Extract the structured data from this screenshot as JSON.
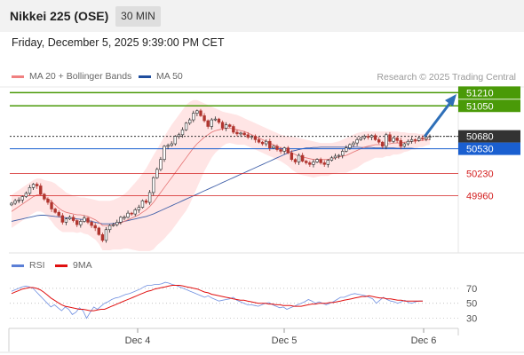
{
  "header": {
    "title": "Nikkei 225 (OSE)",
    "timeframe": "30 MIN"
  },
  "datetime": "Friday, December 5, 2025 9:39:00 PM CET",
  "legend": {
    "ma20": {
      "label": "MA 20 + Bollinger Bands",
      "color": "#f08080"
    },
    "ma50": {
      "label": "MA 50",
      "color": "#1f4e9e"
    }
  },
  "credit": "Research © 2025 Trading Central",
  "rsi_legend": {
    "rsi": {
      "label": "RSI",
      "color": "#5b7fd6"
    },
    "ma9": {
      "label": "9MA",
      "color": "#e01010"
    }
  },
  "colors": {
    "up": "#2a2a2a",
    "down": "#b0352f",
    "target_green": "#4a9a08",
    "resistance_dark": "#333333",
    "pivot_blue": "#1a5fd0",
    "support_red": "#d32020",
    "bollinger_fill": "#ffdcdc",
    "arrow": "#2e6fb8"
  },
  "chart_data": [
    {
      "type": "candlestick",
      "ylim": [
        49300,
        51300
      ],
      "x_tick_labels": [
        "Dec 4",
        "Dec 5",
        "Dec 6"
      ],
      "levels": [
        {
          "value": 51210,
          "label": "51210",
          "kind": "target"
        },
        {
          "value": 51050,
          "label": "51050",
          "kind": "target"
        },
        {
          "value": 50680,
          "label": "50680",
          "kind": "resistance"
        },
        {
          "value": 50530,
          "label": "50530",
          "kind": "pivot"
        },
        {
          "value": 50230,
          "label": "50230",
          "kind": "support"
        },
        {
          "value": 49960,
          "label": "49960",
          "kind": "support"
        }
      ],
      "close": [
        49870,
        49900,
        49910,
        49950,
        49990,
        50060,
        50100,
        50080,
        49980,
        49920,
        49880,
        49800,
        49760,
        49720,
        49640,
        49680,
        49700,
        49660,
        49610,
        49650,
        49690,
        49640,
        49600,
        49570,
        49490,
        49420,
        49550,
        49600,
        49610,
        49640,
        49700,
        49700,
        49750,
        49740,
        49790,
        49820,
        49900,
        49880,
        50000,
        50180,
        50280,
        50400,
        50560,
        50570,
        50590,
        50680,
        50700,
        50760,
        50840,
        50880,
        50960,
        50990,
        50930,
        50870,
        50800,
        50880,
        50890,
        50850,
        50780,
        50820,
        50800,
        50730,
        50710,
        50720,
        50700,
        50670,
        50680,
        50640,
        50610,
        50590,
        50620,
        50540,
        50560,
        50520,
        50500,
        50540,
        50480,
        50400,
        50370,
        50450,
        50380,
        50360,
        50340,
        50370,
        50400,
        50360,
        50340,
        50390,
        50420,
        50440,
        50450,
        50500,
        50540,
        50580,
        50600,
        50640,
        50660,
        50680,
        50670,
        50690,
        50640,
        50610,
        50560,
        50700,
        50620,
        50660,
        50630,
        50560,
        50590,
        50620,
        50640,
        50630,
        50660,
        50650,
        50670,
        50680
      ],
      "ma20": [
        49770,
        49800,
        49830,
        49860,
        49890,
        49920,
        49950,
        49970,
        49970,
        49950,
        49920,
        49890,
        49850,
        49810,
        49780,
        49760,
        49750,
        49740,
        49730,
        49730,
        49720,
        49710,
        49690,
        49670,
        49640,
        49600,
        49600,
        49600,
        49610,
        49620,
        49630,
        49650,
        49670,
        49690,
        49710,
        49730,
        49760,
        49790,
        49830,
        49880,
        49940,
        50000,
        50060,
        50120,
        50180,
        50240,
        50300,
        50360,
        50420,
        50480,
        50540,
        50590,
        50630,
        50670,
        50700,
        50730,
        50750,
        50760,
        50770,
        50780,
        50780,
        50770,
        50760,
        50750,
        50740,
        50720,
        50700,
        50680,
        50660,
        50640,
        50620,
        50600,
        50580,
        50560,
        50540,
        50520,
        50500,
        50480,
        50460,
        50440,
        50430,
        50420,
        50410,
        50400,
        50400,
        50400,
        50400,
        50400,
        50410,
        50420,
        50430,
        50440,
        50450,
        50470,
        50490,
        50510,
        50530,
        50550,
        50560,
        50570,
        50580,
        50580,
        50580,
        50590,
        50590,
        50600,
        50600,
        50600,
        50610,
        50610,
        50620,
        50620,
        50630,
        50630,
        50640,
        50640
      ],
      "bollinger_upper": [
        49970,
        50000,
        50030,
        50060,
        50090,
        50120,
        50150,
        50170,
        50170,
        50150,
        50140,
        50130,
        50110,
        50070,
        50040,
        50000,
        49980,
        49960,
        49950,
        49940,
        49940,
        49930,
        49920,
        49910,
        49900,
        49900,
        49900,
        49900,
        49910,
        49930,
        49950,
        49980,
        50020,
        50070,
        50120,
        50170,
        50230,
        50290,
        50370,
        50450,
        50520,
        50600,
        50680,
        50750,
        50820,
        50880,
        50940,
        51000,
        51060,
        51100,
        51120,
        51120,
        51100,
        51080,
        51060,
        51040,
        51020,
        51000,
        50980,
        50970,
        50960,
        50950,
        50940,
        50920,
        50900,
        50880,
        50860,
        50840,
        50820,
        50800,
        50780,
        50760,
        50740,
        50720,
        50700,
        50690,
        50680,
        50680,
        50670,
        50660,
        50650,
        50640,
        50630,
        50620,
        50610,
        50600,
        50600,
        50600,
        50600,
        50610,
        50620,
        50640,
        50660,
        50680,
        50700,
        50720,
        50730,
        50740,
        50740,
        50740,
        50740,
        50740,
        50740,
        50740,
        50740,
        50740,
        50740,
        50730,
        50730,
        50720,
        50720,
        50720,
        50710,
        50710,
        50710,
        50700
      ],
      "bollinger_lower": [
        49570,
        49600,
        49630,
        49660,
        49690,
        49720,
        49750,
        49770,
        49770,
        49750,
        49700,
        49650,
        49590,
        49550,
        49520,
        49520,
        49520,
        49520,
        49510,
        49520,
        49500,
        49490,
        49460,
        49430,
        49380,
        49300,
        49300,
        49300,
        49310,
        49310,
        49310,
        49320,
        49320,
        49310,
        49300,
        49290,
        49290,
        49290,
        49290,
        49310,
        49360,
        49400,
        49440,
        49490,
        49540,
        49600,
        49660,
        49720,
        49780,
        49860,
        49960,
        50060,
        50160,
        50260,
        50340,
        50420,
        50480,
        50520,
        50560,
        50590,
        50600,
        50590,
        50580,
        50580,
        50580,
        50560,
        50540,
        50520,
        50500,
        50480,
        50460,
        50440,
        50420,
        50400,
        50380,
        50350,
        50320,
        50280,
        50250,
        50220,
        50210,
        50200,
        50190,
        50180,
        50190,
        50200,
        50200,
        50200,
        50220,
        50230,
        50240,
        50240,
        50240,
        50260,
        50280,
        50300,
        50330,
        50360,
        50380,
        50400,
        50420,
        50420,
        50420,
        50440,
        50440,
        50460,
        50460,
        50470,
        50490,
        50500,
        50520,
        50520,
        50550,
        50550,
        50570,
        50580
      ],
      "ma50": [
        49650,
        49660,
        49670,
        49680,
        49690,
        49700,
        49710,
        49720,
        49725,
        49725,
        49720,
        49715,
        49710,
        49705,
        49700,
        49695,
        49690,
        49685,
        49680,
        49675,
        49670,
        49660,
        49650,
        49640,
        49630,
        49620,
        49620,
        49620,
        49625,
        49630,
        49640,
        49650,
        49660,
        49670,
        49680,
        49690,
        49700,
        49710,
        49725,
        49740,
        49760,
        49780,
        49800,
        49820,
        49840,
        49860,
        49880,
        49900,
        49920,
        49940,
        49960,
        49980,
        50000,
        50020,
        50040,
        50060,
        50080,
        50100,
        50120,
        50140,
        50160,
        50180,
        50200,
        50220,
        50240,
        50260,
        50280,
        50300,
        50320,
        50340,
        50360,
        50380,
        50400,
        50420,
        50440,
        50460,
        50480,
        50500,
        50510,
        50520,
        50530,
        50540,
        50540,
        50545,
        50545,
        50550,
        50550,
        50550,
        50550,
        50550,
        50550,
        50550,
        50550,
        50550,
        50550,
        50550,
        50545,
        50545,
        50545,
        50545,
        50540,
        50540,
        50540,
        50540,
        50540,
        50540,
        50535,
        50535,
        50535,
        50535,
        50535,
        50530,
        50530,
        50530,
        50530,
        50530
      ]
    },
    {
      "type": "line",
      "title": "RSI",
      "ylim": [
        20,
        90
      ],
      "y_tick_labels": [
        "70",
        "50",
        "30"
      ],
      "series": [
        {
          "name": "RSI",
          "values": [
            66,
            68,
            70,
            72,
            73,
            72,
            70,
            65,
            60,
            55,
            50,
            45,
            48,
            44,
            40,
            45,
            42,
            35,
            38,
            44,
            40,
            30,
            38,
            45,
            42,
            46,
            50,
            52,
            55,
            57,
            58,
            60,
            62,
            63,
            65,
            67,
            69,
            72,
            74,
            74,
            75,
            75,
            76,
            78,
            77,
            75,
            74,
            72,
            70,
            68,
            66,
            64,
            62,
            60,
            58,
            60,
            57,
            55,
            53,
            54,
            55,
            56,
            58,
            54,
            52,
            50,
            48,
            48,
            47,
            46,
            48,
            50,
            51,
            48,
            46,
            44,
            45,
            42,
            44,
            46,
            48,
            50,
            52,
            55,
            53,
            50,
            52,
            50,
            48,
            50,
            52,
            55,
            58,
            58,
            60,
            62,
            63,
            62,
            61,
            60,
            58,
            56,
            50,
            54,
            58,
            55,
            53,
            52,
            50,
            52,
            54,
            51,
            50,
            52,
            53,
            53
          ]
        },
        {
          "name": "9MA",
          "values": [
            63,
            65,
            67,
            69,
            70,
            71,
            71,
            70,
            68,
            65,
            61,
            57,
            54,
            51,
            48,
            46,
            45,
            44,
            43,
            42,
            42,
            41,
            40,
            40,
            41,
            42,
            42,
            44,
            46,
            48,
            50,
            52,
            54,
            56,
            58,
            60,
            62,
            64,
            66,
            67,
            69,
            70,
            71,
            72,
            73,
            74,
            74,
            74,
            73,
            72,
            71,
            70,
            69,
            67,
            65,
            64,
            62,
            61,
            60,
            59,
            58,
            57,
            56,
            55,
            54,
            54,
            53,
            52,
            51,
            50,
            50,
            50,
            49,
            49,
            48,
            48,
            47,
            47,
            47,
            46,
            46,
            46,
            47,
            48,
            49,
            49,
            50,
            50,
            50,
            51,
            51,
            52,
            53,
            54,
            55,
            56,
            57,
            58,
            59,
            59,
            60,
            59,
            58,
            57,
            57,
            56,
            56,
            55,
            54,
            54,
            53,
            53,
            53,
            53,
            53,
            53
          ]
        }
      ]
    }
  ]
}
